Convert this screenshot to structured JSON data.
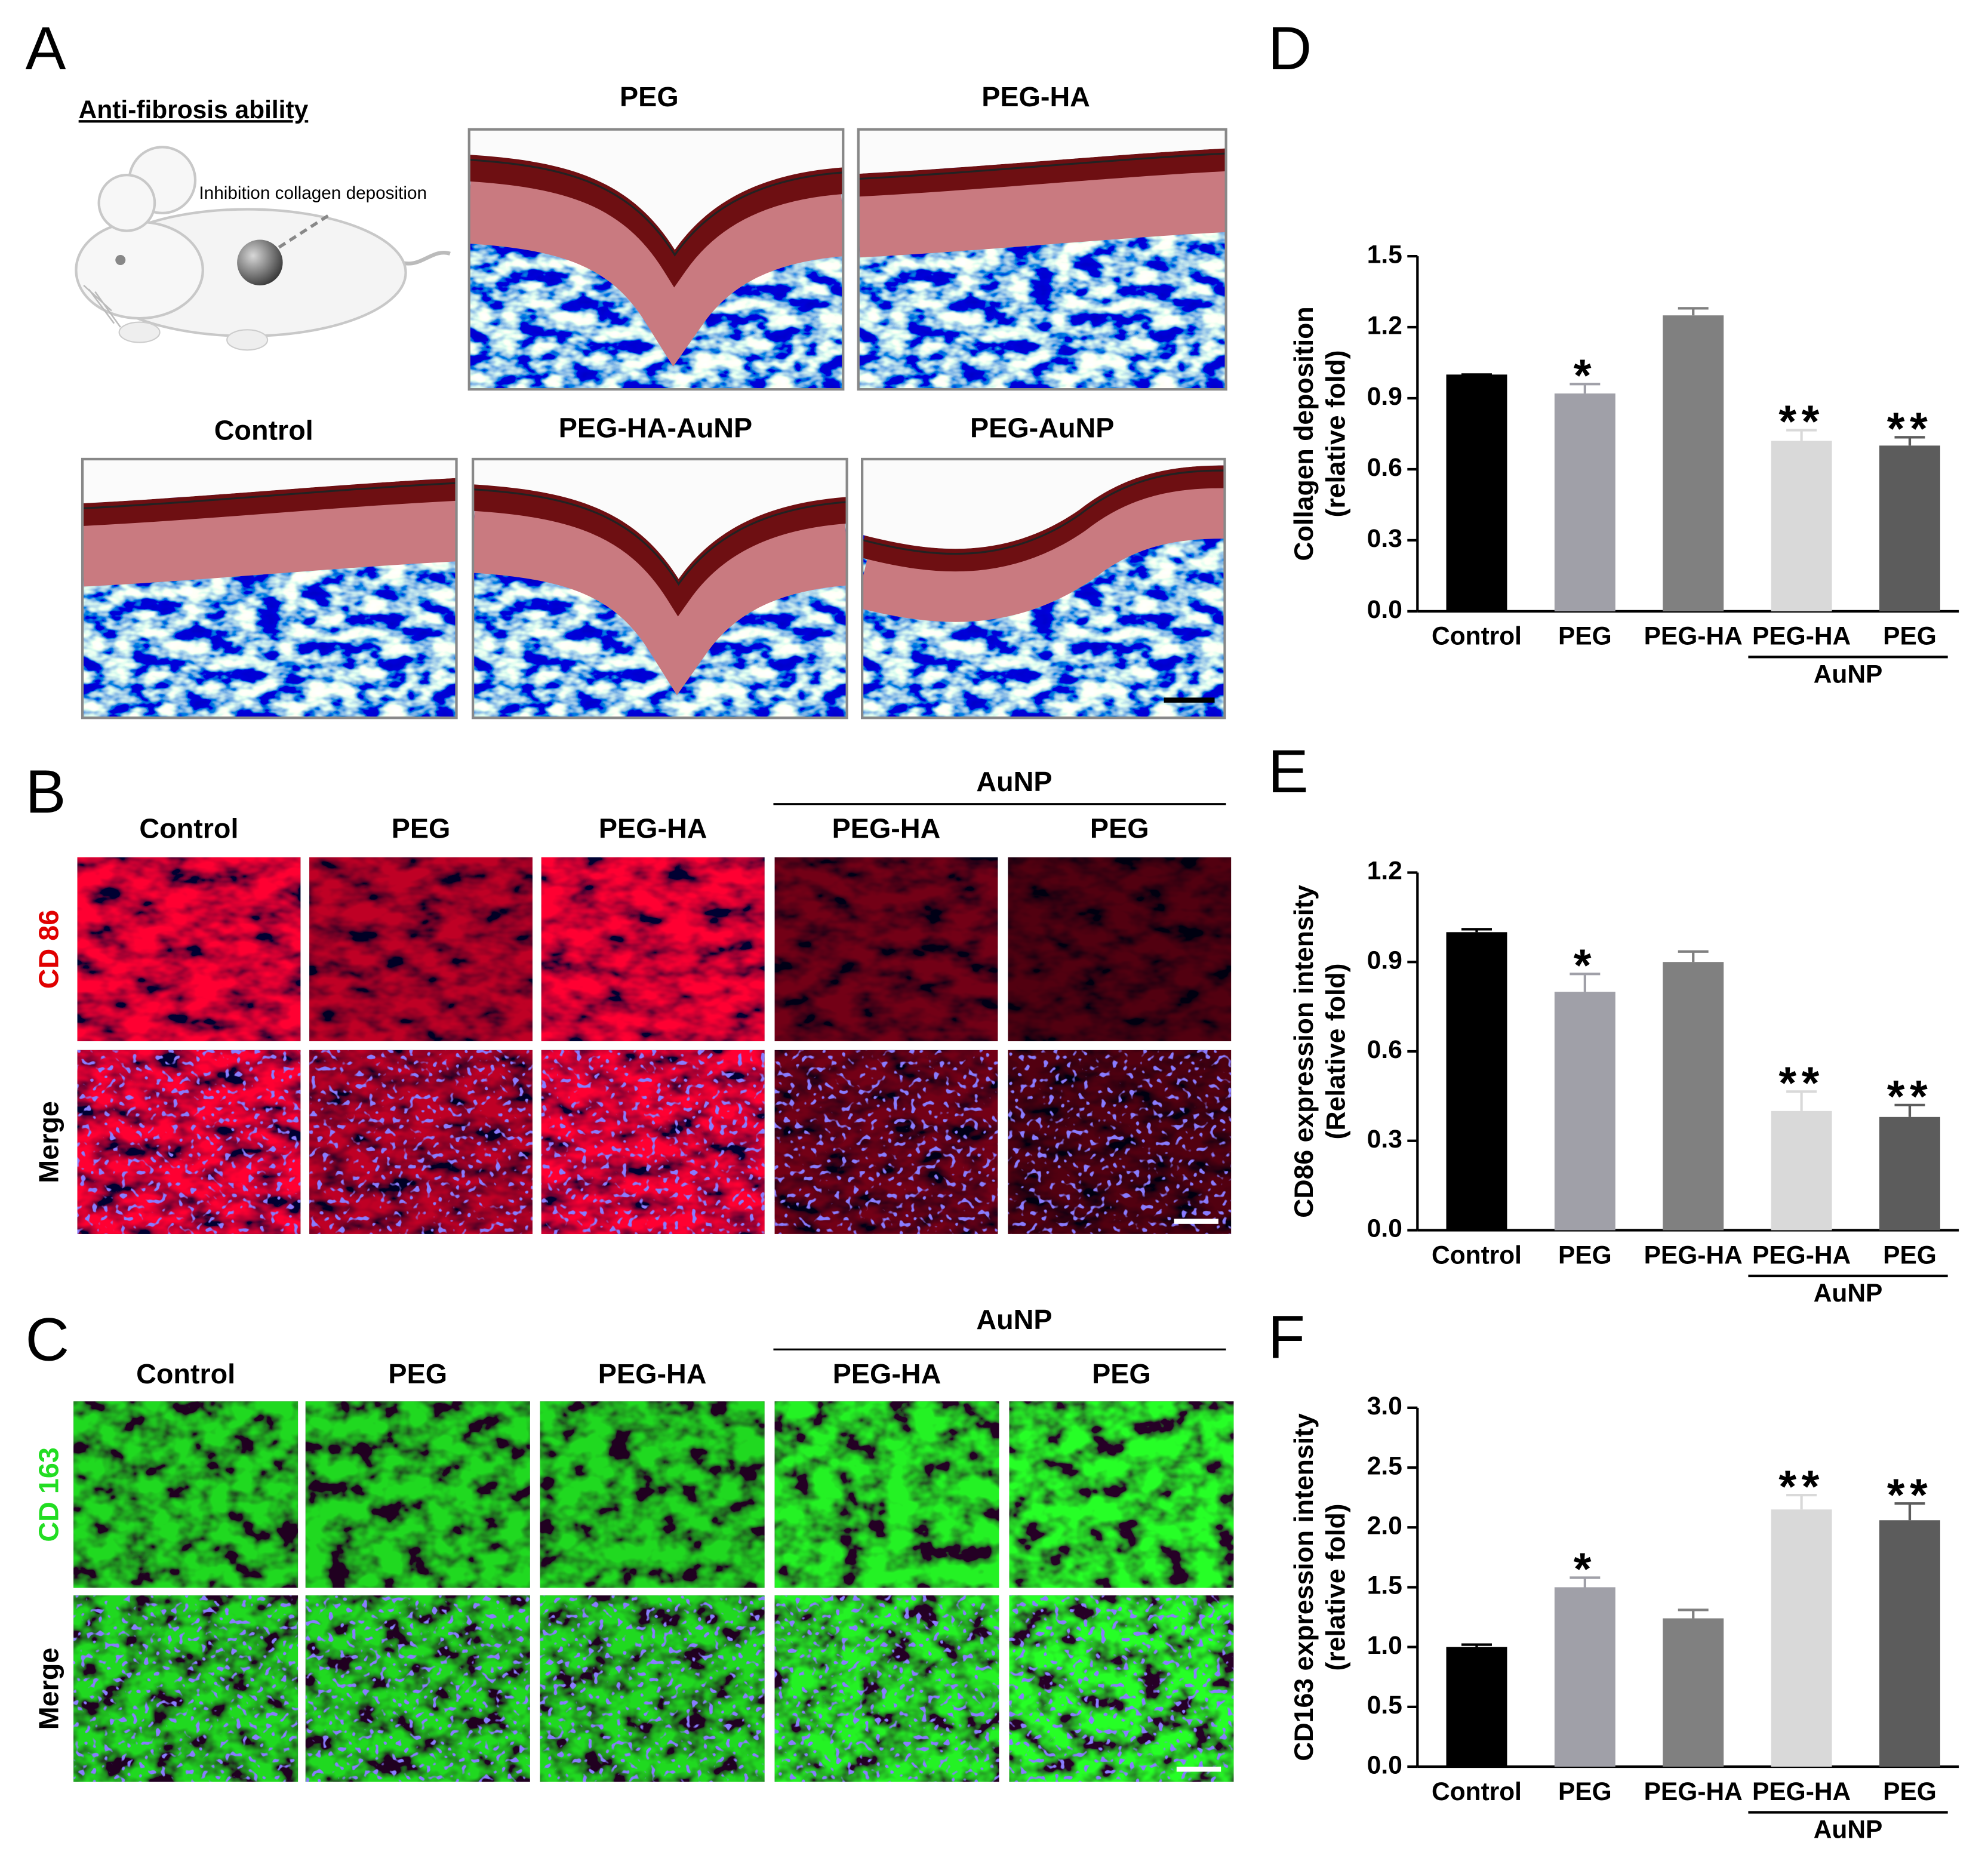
{
  "panels": {
    "A": {
      "label": "A",
      "subtitle": "Anti-fibrosis ability",
      "annotation": "Inhibition collagen deposition",
      "images": [
        {
          "title": "PEG"
        },
        {
          "title": "PEG-HA"
        },
        {
          "title": "Control"
        },
        {
          "title": "PEG-HA-AuNP"
        },
        {
          "title": "PEG-AuNP"
        }
      ]
    },
    "B": {
      "label": "B",
      "group": "AuNP",
      "columns": [
        "Control",
        "PEG",
        "PEG-HA",
        "PEG-HA",
        "PEG"
      ],
      "rows": [
        "CD 86",
        "Merge"
      ]
    },
    "C": {
      "label": "C",
      "group": "AuNP",
      "columns": [
        "Control",
        "PEG",
        "PEG-HA",
        "PEG-HA",
        "PEG"
      ],
      "rows": [
        "CD 163",
        "Merge"
      ]
    }
  },
  "chart_data": [
    {
      "type": "bar",
      "panel_label": "D",
      "y_label": [
        "Collagen deposition",
        "(relative fold)"
      ],
      "categories": [
        "Control",
        "PEG",
        "PEG-HA",
        "PEG-HA",
        "PEG"
      ],
      "values": [
        1.0,
        0.92,
        1.25,
        0.72,
        0.7
      ],
      "errors": [
        0,
        0.04,
        0.03,
        0.045,
        0.035
      ],
      "significance": [
        null,
        "*",
        null,
        "**",
        "**"
      ],
      "colors": [
        "#000000",
        "#a0a0a8",
        "#808080",
        "#d9d9d9",
        "#5c5c5c"
      ],
      "group": {
        "label": "AuNP",
        "from": 3,
        "to": 4
      },
      "ylim": [
        0,
        1.5
      ],
      "yticks": [
        {
          "value": 0,
          "label": "0.0"
        },
        0.3,
        0.6,
        0.9,
        1.2,
        1.5
      ]
    },
    {
      "type": "bar",
      "panel_label": "E",
      "y_label": [
        "CD86 expression intensity",
        "(Relative fold)"
      ],
      "categories": [
        "Control",
        "PEG",
        "PEG-HA",
        "PEG-HA",
        "PEG"
      ],
      "values": [
        1.0,
        0.8,
        0.9,
        0.4,
        0.38
      ],
      "errors": [
        0.01,
        0.06,
        0.035,
        0.065,
        0.04
      ],
      "significance": [
        null,
        "*",
        null,
        "**",
        "**"
      ],
      "colors": [
        "#000000",
        "#a0a0a8",
        "#808080",
        "#d9d9d9",
        "#5c5c5c"
      ],
      "group": {
        "label": "AuNP",
        "from": 3,
        "to": 4
      },
      "ylim": [
        0,
        1.2
      ],
      "yticks": [
        {
          "value": 0,
          "label": "0.0"
        },
        0.3,
        0.6,
        0.9,
        1.2
      ]
    },
    {
      "type": "bar",
      "panel_label": "F",
      "y_label": [
        "CD163 expression intensity",
        "(relative fold)"
      ],
      "categories": [
        "Control",
        "PEG",
        "PEG-HA",
        "PEG-HA",
        "PEG"
      ],
      "values": [
        1.0,
        1.5,
        1.24,
        2.15,
        2.06
      ],
      "errors": [
        0.02,
        0.08,
        0.07,
        0.12,
        0.14
      ],
      "significance": [
        null,
        "*",
        null,
        "**",
        "**"
      ],
      "colors": [
        "#000000",
        "#a0a0a8",
        "#808080",
        "#d9d9d9",
        "#5c5c5c"
      ],
      "group": {
        "label": "AuNP",
        "from": 3,
        "to": 4
      },
      "ylim": [
        0,
        3.0
      ],
      "yticks": [
        {
          "value": 0,
          "label": "0.0"
        },
        0.5,
        {
          "value": 1,
          "label": "1.0"
        },
        1.5,
        {
          "value": 2,
          "label": "2.0"
        },
        2.5,
        {
          "value": 3,
          "label": "3.0"
        }
      ]
    }
  ]
}
